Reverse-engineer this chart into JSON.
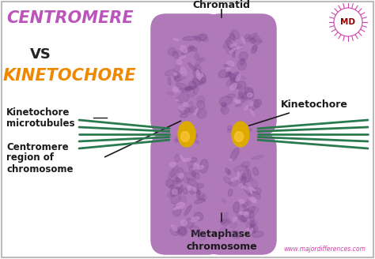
{
  "bg_color": "#ffffff",
  "border_color": "#bbbbbb",
  "title1": "CENTROMERE",
  "title1_color": "#bb55bb",
  "vs_text": "VS",
  "vs_color": "#222222",
  "title2": "KINETOCHORE",
  "title2_color": "#ee8800",
  "label_chromatid": "Chromatid",
  "label_kinetochore": "Kinetochore",
  "label_microtubules1": "Kinetochore",
  "label_microtubules2": "microtubules",
  "label_centromere1": "Centromere",
  "label_centromere2": "region of",
  "label_centromere3": "chromosome",
  "label_metaphase1": "Metaphase",
  "label_metaphase2": "chromosome",
  "label_website": "www.majordifferences.com",
  "label_md": "MD",
  "chrom_base": "#b07ab8",
  "chrom_light": "#c990d0",
  "chrom_dark": "#7a4a90",
  "chrom_shadow": "#9060a8",
  "kinetochore_color": "#ddaa00",
  "kinetochore_light": "#ffcc44",
  "microtubule_color": "#2a7a50",
  "text_color": "#1a1a1a",
  "pink_text": "#cc44aa",
  "logo_color": "#cc44aa"
}
